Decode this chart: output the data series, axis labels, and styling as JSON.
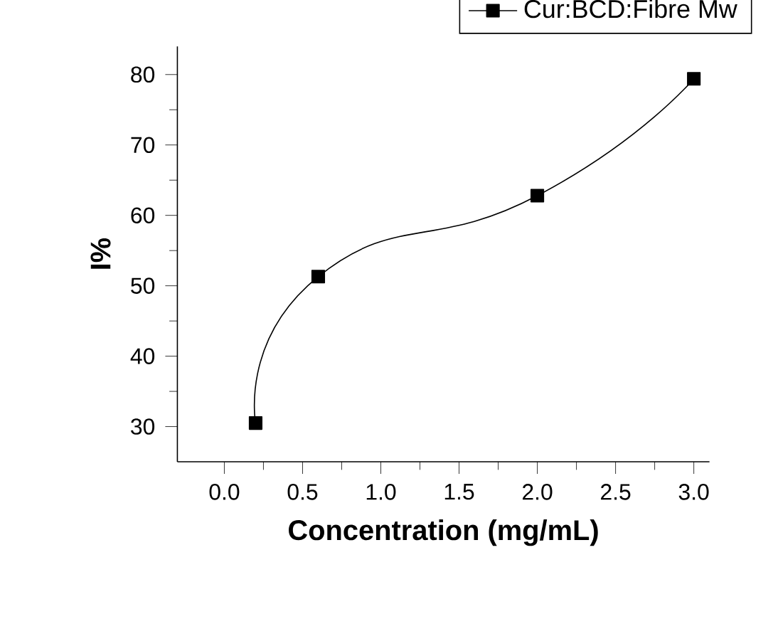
{
  "chart_data": {
    "type": "line",
    "xlabel": "Concentration (mg/mL)",
    "ylabel": "I%",
    "x": [
      0.2,
      0.6,
      2.0,
      3.0
    ],
    "series": [
      {
        "name": "Cur:BCD:Fibre Mw",
        "color": "#000000",
        "values": [
          30.5,
          51.3,
          62.8,
          79.4
        ]
      }
    ],
    "xlim": [
      -0.3,
      3.1
    ],
    "ylim": [
      25,
      84
    ],
    "xticks": [
      {
        "value": 0,
        "label": "0.0"
      },
      0.5,
      {
        "value": 1,
        "label": "1.0"
      },
      1.5,
      {
        "value": 2,
        "label": "2.0"
      },
      2.5,
      {
        "value": 3,
        "label": "3.0"
      }
    ],
    "yticks": [
      30,
      40,
      50,
      60,
      70,
      80
    ],
    "marker": "square",
    "line_style": "solid",
    "grid": false,
    "legend": "top right"
  }
}
